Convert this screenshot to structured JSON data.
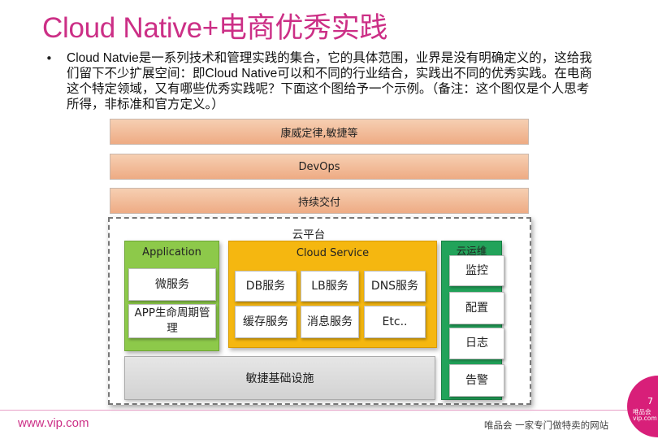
{
  "title": "Cloud Native+电商优秀实践",
  "bullet": {
    "marker": "•",
    "text": "Cloud Natvie是一系列技术和管理实践的集合，它的具体范围，业界是没有明确定义的，这给我们留下不少扩展空间：即Cloud Native可以和不同的行业结合，实践出不同的优秀实践。在电商这个特定领域，又有哪些优秀实践呢？下面这个图给予一个示例。（备注：这个图仅是个人思考所得，非标准和官方定义。）"
  },
  "diagram": {
    "layers": [
      "康威定律,敏捷等",
      "DevOps",
      "持续交付"
    ],
    "cloud_platform": {
      "label": "云平台",
      "application": {
        "title": "Application",
        "items": [
          "微服务",
          "APP生命周期管理"
        ]
      },
      "cloud_service": {
        "title": "Cloud Service",
        "items": [
          "DB服务",
          "LB服务",
          "DNS服务",
          "缓存服务",
          "消息服务",
          "Etc.."
        ]
      },
      "cloud_ops": {
        "title": "云运维",
        "items": [
          "监控",
          "配置",
          "日志",
          "告警"
        ]
      },
      "base": "敏捷基础设施"
    }
  },
  "footer": {
    "url": "www.vip.com",
    "slogan": "唯品会 一家专门做特卖的网站",
    "logo_text": "唯品会 vip.com",
    "page_number": "7"
  },
  "colors": {
    "title": "#cc2f86",
    "layer_fill": "#f0b58f",
    "application": "#8dc94a",
    "cloud_service": "#f5b710",
    "cloud_ops": "#22a35a",
    "base": "#d9d9d9",
    "brand": "#d81f79"
  }
}
